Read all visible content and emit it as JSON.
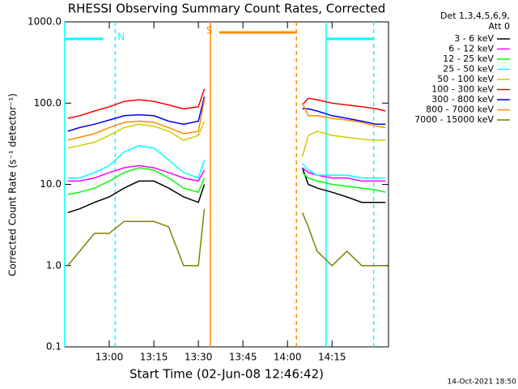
{
  "chart_data": {
    "type": "line",
    "title": "RHESSI Observing Summary Count Rates, Corrected",
    "x_label": "Start Time (02-Jun-08 12:46:42)",
    "y_label": "Corrected Count Rate (s⁻¹ detector⁻¹)",
    "legend_title": [
      "Det 1,3,4,5,6,9,",
      "Att 0"
    ],
    "footer": "14-Oct-2021 18:50",
    "log_y": true,
    "xlim": [
      "12:45",
      "14:34"
    ],
    "xticks": [
      "13:00",
      "13:15",
      "13:30",
      "13:45",
      "14:00",
      "14:15"
    ],
    "ylim": [
      0.1,
      1000
    ],
    "yticks": [
      {
        "value": 0.1,
        "label": "0.1"
      },
      {
        "value": 1,
        "label": "1.0"
      },
      {
        "value": 10,
        "label": "10.0"
      },
      {
        "value": 100,
        "label": "100.0"
      },
      {
        "value": 1000,
        "label": "1000.0"
      }
    ],
    "x": [
      "12:46",
      "12:50",
      "12:55",
      "13:00",
      "13:05",
      "13:10",
      "13:15",
      "13:20",
      "13:25",
      "13:30",
      "13:32",
      "13:45",
      "14:05",
      "14:07",
      "14:10",
      "14:15",
      "14:20",
      "14:25",
      "14:30",
      "14:33"
    ],
    "series": [
      {
        "name": "3 - 6 keV",
        "color": "#000000",
        "values": [
          4.5,
          5,
          6,
          7,
          9,
          11,
          11,
          9,
          7,
          6,
          10,
          null,
          16,
          10,
          9,
          8,
          7,
          6,
          6,
          6
        ]
      },
      {
        "name": "6 - 12 keV",
        "color": "#ff00ff",
        "values": [
          11,
          11,
          12,
          14,
          16,
          17,
          16,
          14,
          12,
          11,
          15,
          null,
          16,
          14,
          13,
          12,
          12,
          11,
          11,
          11
        ]
      },
      {
        "name": "12 - 25 keV",
        "color": "#00ff00",
        "values": [
          7.5,
          8,
          9,
          11,
          14,
          16,
          15,
          12,
          9,
          8,
          12,
          null,
          14,
          12,
          11,
          10,
          9.5,
          9,
          8.5,
          8
        ]
      },
      {
        "name": "25 - 50 keV",
        "color": "#00ffff",
        "values": [
          12,
          12,
          14,
          17,
          25,
          30,
          28,
          20,
          14,
          12,
          20,
          null,
          18,
          15,
          13,
          13,
          13,
          12,
          12,
          12
        ]
      },
      {
        "name": "50 - 100 keV",
        "color": "#cccc00",
        "values": [
          28,
          30,
          33,
          40,
          50,
          55,
          52,
          45,
          35,
          40,
          60,
          null,
          22,
          40,
          45,
          40,
          38,
          36,
          35,
          35
        ]
      },
      {
        "name": "100 - 300 keV",
        "color": "#ff0000",
        "values": [
          65,
          70,
          80,
          90,
          105,
          110,
          105,
          95,
          85,
          90,
          150,
          null,
          95,
          115,
          110,
          100,
          95,
          90,
          85,
          80
        ]
      },
      {
        "name": "300 - 800 keV",
        "color": "#0000ff",
        "values": [
          45,
          50,
          55,
          62,
          70,
          72,
          70,
          60,
          55,
          60,
          120,
          null,
          85,
          85,
          80,
          70,
          65,
          60,
          55,
          55
        ]
      },
      {
        "name": "800 - 7000 keV",
        "color": "#ff8c00",
        "values": [
          35,
          38,
          42,
          50,
          58,
          60,
          58,
          50,
          42,
          45,
          110,
          null,
          100,
          70,
          70,
          65,
          62,
          58,
          52,
          50
        ]
      },
      {
        "name": "7000 - 15000 keV",
        "color": "#808000",
        "values": [
          1,
          1.5,
          2.5,
          2.5,
          3.5,
          3.5,
          3.5,
          3,
          1,
          1,
          5,
          null,
          4.5,
          3,
          1.5,
          1,
          1.5,
          1,
          1,
          1
        ]
      }
    ],
    "markers": [
      {
        "time": "12:45",
        "color": "#00ffff",
        "dashed": false
      },
      {
        "time": "13:02",
        "color": "#00ffff",
        "dashed": true
      },
      {
        "time": "13:34",
        "color": "#ff8c00",
        "dashed": false
      },
      {
        "time": "14:03",
        "color": "#ff8c00",
        "dashed": true
      },
      {
        "time": "14:13",
        "color": "#00ffff",
        "dashed": false
      },
      {
        "time": "14:29",
        "color": "#00ffff",
        "dashed": true
      }
    ],
    "bars": [
      {
        "start": "12:45",
        "end": "12:58",
        "color": "#00ffff",
        "label": "N"
      },
      {
        "start": "13:37",
        "end": "14:03",
        "color": "#ff8c00",
        "label": "S"
      },
      {
        "start": "14:13",
        "end": "14:29",
        "color": "#00ffff"
      }
    ]
  }
}
